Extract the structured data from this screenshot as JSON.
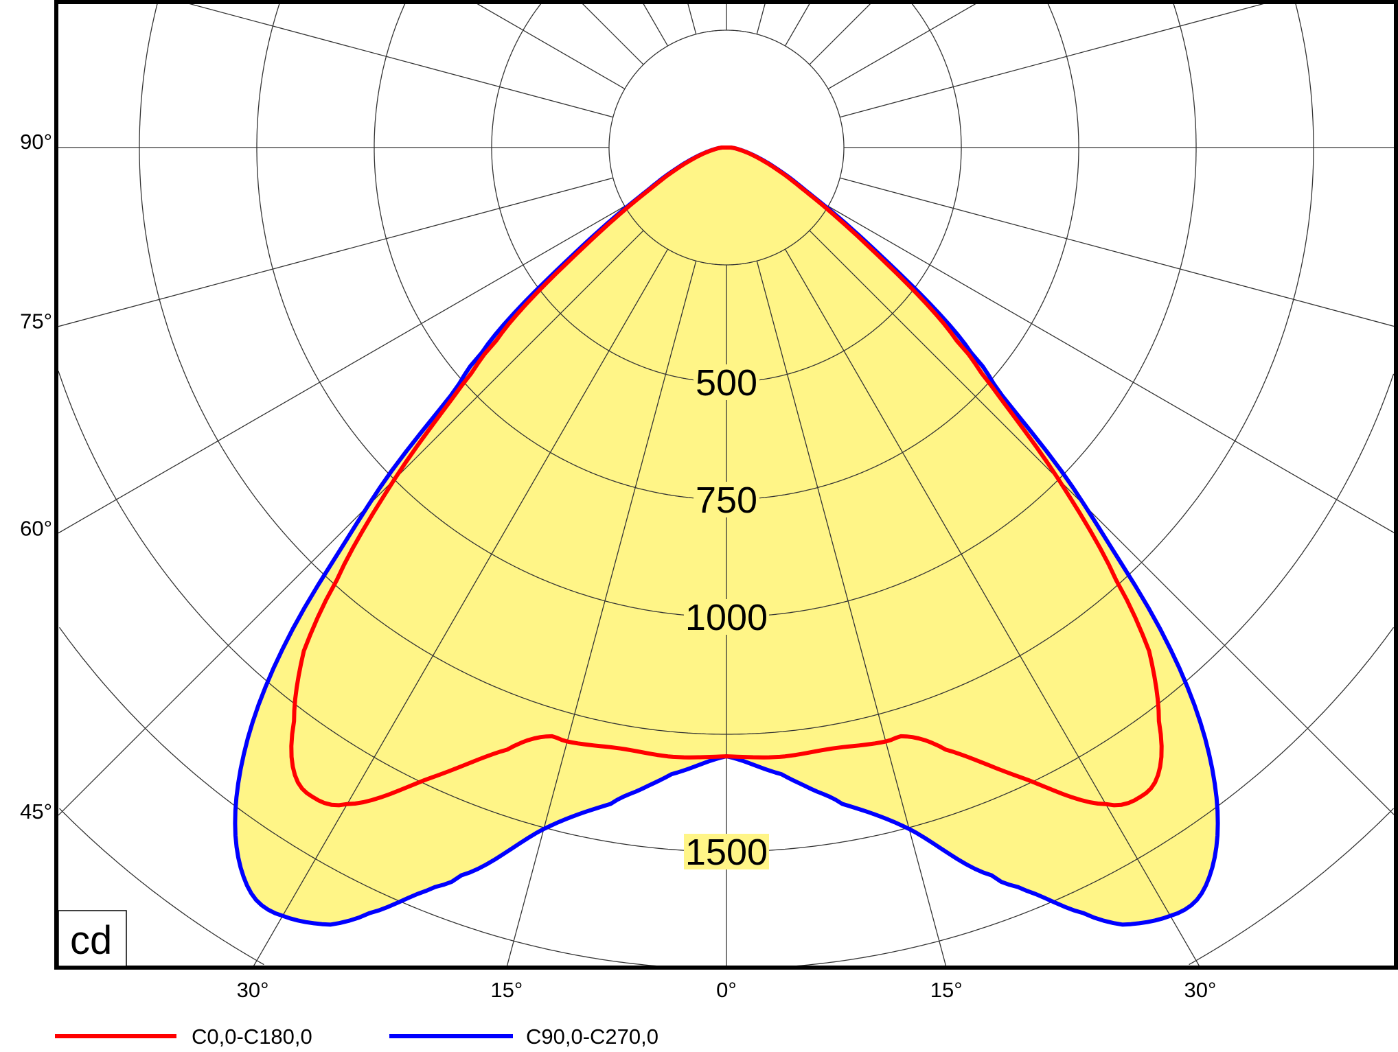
{
  "chart_data": {
    "type": "polar",
    "title": "",
    "unit_label": "cd",
    "radial_max": 1750,
    "ring_step": 250,
    "ring_labels": [
      "500",
      "750",
      "1000",
      "1500"
    ],
    "ring_label_values": [
      500,
      750,
      1000,
      1500
    ],
    "spoke_step_deg": 15,
    "left_tick_labels": [
      "90°",
      "75°",
      "60°",
      "45°"
    ],
    "left_tick_angles": [
      90,
      75,
      60,
      45
    ],
    "bottom_tick_labels": [
      "30°",
      "15°",
      "0°",
      "15°",
      "30°"
    ],
    "bottom_tick_angles": [
      -30,
      -15,
      0,
      15,
      30
    ],
    "fill_color": "#FFF587",
    "series": [
      {
        "name": "C0,0-C180,0",
        "color": "#FF0000",
        "angles": [
          0,
          5,
          10,
          15,
          17,
          20,
          25,
          30,
          33,
          35,
          37,
          40,
          42,
          45,
          48,
          50,
          55,
          60,
          65,
          70,
          75,
          80,
          85,
          90
        ],
        "values": [
          1297,
          1303,
          1300,
          1310,
          1312,
          1365,
          1480,
          1615,
          1640,
          1610,
          1530,
          1400,
          1240,
          1000,
          760,
          640,
          375,
          215,
          135,
          85,
          52,
          30,
          18,
          10
        ]
      },
      {
        "name": "C90,0-C270,0",
        "color": "#0000FF",
        "angles": [
          0,
          5,
          7.5,
          10,
          15,
          20,
          22,
          25,
          27,
          30,
          32,
          34,
          36,
          38,
          40,
          42,
          44,
          46,
          48,
          50,
          55,
          60,
          65,
          70,
          75,
          80,
          85,
          90
        ],
        "values": [
          1297,
          1340,
          1378,
          1420,
          1503,
          1650,
          1708,
          1800,
          1858,
          1890,
          1890,
          1850,
          1780,
          1680,
          1550,
          1380,
          1170,
          990,
          790,
          680,
          400,
          225,
          142,
          90,
          55,
          32,
          18,
          10
        ]
      }
    ]
  }
}
